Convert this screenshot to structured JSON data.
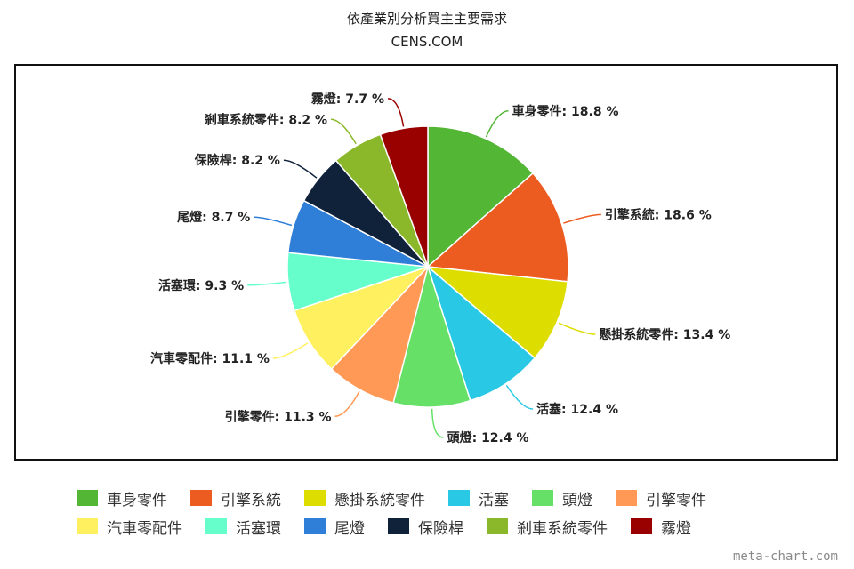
{
  "header": {
    "title": "依產業別分析買主主要需求",
    "subtitle": "CENS.COM"
  },
  "watermark": "meta-chart.com",
  "chart_data": {
    "type": "pie",
    "title": "依產業別分析買主主要需求",
    "subtitle": "CENS.COM",
    "value_suffix": " %",
    "legend_position": "bottom",
    "slices": [
      {
        "label": "車身零件",
        "value": 18.8,
        "color": "#53b635"
      },
      {
        "label": "引擎系統",
        "value": 18.6,
        "color": "#ec5b1f"
      },
      {
        "label": "懸掛系統零件",
        "value": 13.4,
        "color": "#dddd00"
      },
      {
        "label": "活塞",
        "value": 12.4,
        "color": "#29c9e6"
      },
      {
        "label": "頭燈",
        "value": 12.4,
        "color": "#66e066"
      },
      {
        "label": "引擎零件",
        "value": 11.3,
        "color": "#ff9955"
      },
      {
        "label": "汽車零配件",
        "value": 11.1,
        "color": "#fff060"
      },
      {
        "label": "活塞環",
        "value": 9.3,
        "color": "#66ffcc"
      },
      {
        "label": "尾燈",
        "value": 8.7,
        "color": "#2f7fd8"
      },
      {
        "label": "保險桿",
        "value": 8.2,
        "color": "#10213a"
      },
      {
        "label": "剎車系統零件",
        "value": 8.2,
        "color": "#8ab82a"
      },
      {
        "label": "霧燈",
        "value": 7.7,
        "color": "#990000"
      }
    ]
  }
}
